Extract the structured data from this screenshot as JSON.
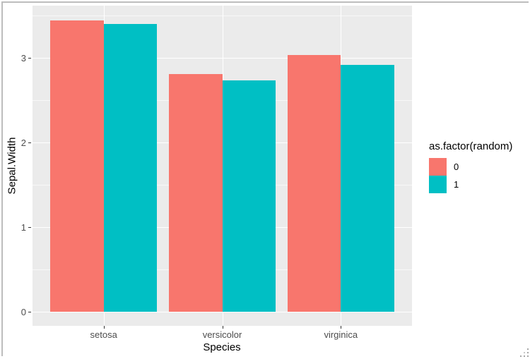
{
  "chart_data": {
    "type": "bar",
    "title": "",
    "categories": [
      "setosa",
      "versicolor",
      "virginica"
    ],
    "series": [
      {
        "name": "0",
        "color": "#F8766D",
        "values": [
          3.44,
          2.81,
          3.03
        ]
      },
      {
        "name": "1",
        "color": "#00BFC4",
        "values": [
          3.4,
          2.73,
          2.92
        ]
      }
    ],
    "xlabel": "Species",
    "ylabel": "Sepal.Width",
    "y_ticks": [
      0,
      1,
      2,
      3
    ],
    "y_minor_ticks": [
      0.5,
      1.5,
      2.5,
      3.5
    ],
    "ylim": [
      -0.17,
      3.62
    ],
    "grid": true,
    "legend_title": "as.factor(random)",
    "legend_position": "right",
    "colors": {
      "panel_background": "#EBEBEB",
      "gridline": "#FFFFFF",
      "tick_label": "#4D4D4D",
      "axis_title": "#000000",
      "tick_mark": "#333333"
    }
  }
}
